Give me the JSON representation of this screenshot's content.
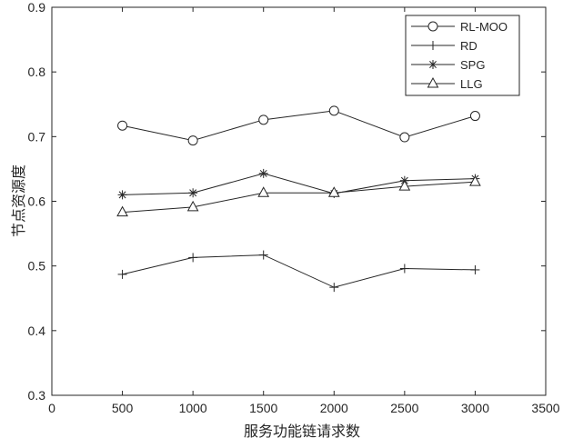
{
  "chart_data": {
    "type": "line",
    "title": "",
    "xlabel": "服务功能链请求数",
    "ylabel": "节点资源度",
    "x": [
      500,
      1000,
      1500,
      2000,
      2500,
      3000
    ],
    "xlim": [
      0,
      3500
    ],
    "ylim": [
      0.3,
      0.9
    ],
    "xticks": [
      0,
      500,
      1000,
      1500,
      2000,
      2500,
      3000,
      3500
    ],
    "yticks": [
      0.3,
      0.4,
      0.5,
      0.6,
      0.7,
      0.8,
      0.9
    ],
    "xtick_labels": [
      "0",
      "500",
      "1000",
      "1500",
      "2000",
      "2500",
      "3000",
      "3500"
    ],
    "ytick_labels": [
      "0.3",
      "0.4",
      "0.5",
      "0.6",
      "0.7",
      "0.8",
      "0.9"
    ],
    "grid": false,
    "legend_position": "top-right",
    "line_color": "#262626",
    "series": [
      {
        "name": "RL-MOO",
        "marker": "circle",
        "values": [
          0.717,
          0.694,
          0.726,
          0.74,
          0.699,
          0.732
        ]
      },
      {
        "name": "RD",
        "marker": "plus",
        "values": [
          0.487,
          0.513,
          0.517,
          0.467,
          0.496,
          0.494
        ]
      },
      {
        "name": "SPG",
        "marker": "asterisk",
        "values": [
          0.61,
          0.613,
          0.643,
          0.612,
          0.632,
          0.635
        ]
      },
      {
        "name": "LLG",
        "marker": "triangle",
        "values": [
          0.583,
          0.591,
          0.613,
          0.613,
          0.623,
          0.63
        ]
      }
    ]
  }
}
